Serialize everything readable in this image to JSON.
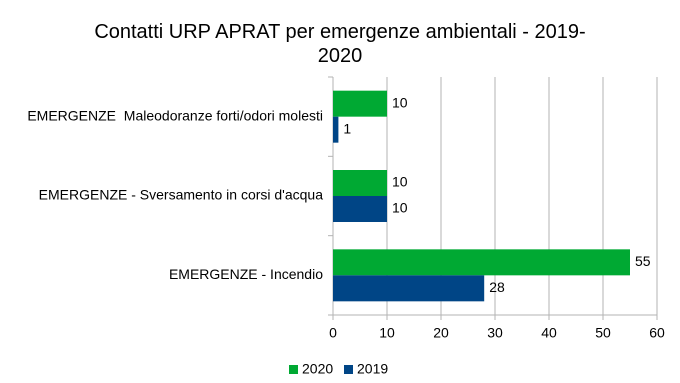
{
  "chart_data": {
    "type": "hbar",
    "title": "Contatti URP APRAT per emergenze ambientali - 2019-2020",
    "categories": [
      "EMERGENZE  Maleodoranze forti/odori molesti",
      "EMERGENZE - Sversamento in corsi d'acqua",
      "EMERGENZE - Incendio"
    ],
    "series": [
      {
        "name": "2020",
        "color": "#00a933",
        "values": [
          10,
          10,
          55
        ]
      },
      {
        "name": "2019",
        "color": "#004586",
        "values": [
          1,
          10,
          28
        ]
      }
    ],
    "xlim": [
      0,
      60
    ],
    "xticks": [
      0,
      10,
      20,
      30,
      40,
      50,
      60
    ],
    "grid": true,
    "legend": "bottom"
  }
}
